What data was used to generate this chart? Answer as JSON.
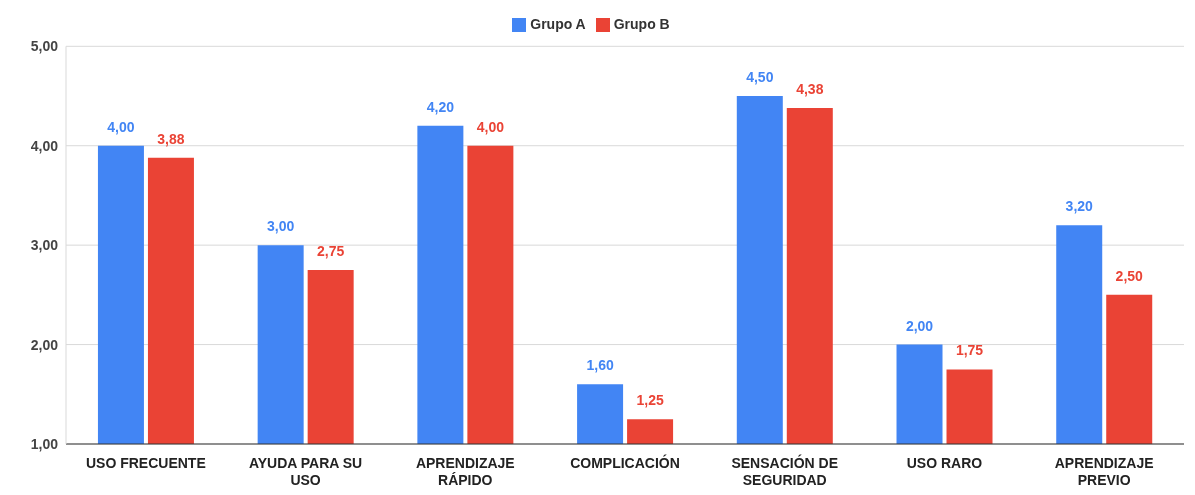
{
  "chart_data": {
    "type": "bar",
    "categories": [
      "USO FRECUENTE",
      "AYUDA PARA SU USO",
      "APRENDIZAJE RÁPIDO",
      "COMPLICACIÓN",
      "SENSACIÓN DE SEGURIDAD",
      "USO RARO",
      "APRENDIZAJE PREVIO"
    ],
    "series": [
      {
        "name": "Grupo A",
        "color": "#4285f4",
        "values": [
          4.0,
          3.0,
          4.2,
          1.6,
          4.5,
          2.0,
          3.2
        ],
        "value_labels": [
          "4,00",
          "3,00",
          "4,20",
          "1,60",
          "4,50",
          "2,00",
          "3,20"
        ]
      },
      {
        "name": "Grupo B",
        "color": "#ea4335",
        "values": [
          3.88,
          2.75,
          4.0,
          1.25,
          4.38,
          1.75,
          2.5
        ],
        "value_labels": [
          "3,88",
          "2,75",
          "4,00",
          "1,25",
          "4,38",
          "1,75",
          "2,50"
        ]
      }
    ],
    "ylim": [
      1,
      5
    ],
    "yticks": [
      {
        "value": 1,
        "label": "1,00"
      },
      {
        "value": 2,
        "label": "2,00"
      },
      {
        "value": 3,
        "label": "3,00"
      },
      {
        "value": 4,
        "label": "4,00"
      },
      {
        "value": 5,
        "label": "5,00"
      }
    ],
    "grid": "y",
    "legend": "top"
  }
}
